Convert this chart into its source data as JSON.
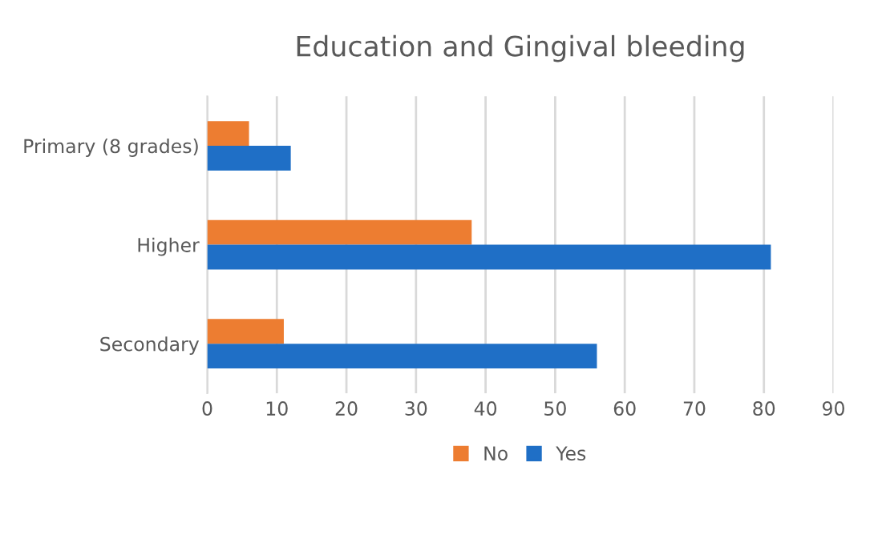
{
  "chart_data": {
    "type": "bar",
    "orientation": "horizontal",
    "title": "Education and Gingival bleeding",
    "categories": [
      "Primary (8 grades)",
      "Higher",
      "Secondary"
    ],
    "series": [
      {
        "name": "No",
        "color": "#ed7d31",
        "values": [
          6,
          38,
          11
        ]
      },
      {
        "name": "Yes",
        "color": "#1f6fc6",
        "values": [
          12,
          81,
          56
        ]
      }
    ],
    "xlim": [
      0,
      90
    ],
    "xticks": [
      0,
      10,
      20,
      30,
      40,
      50,
      60,
      70,
      80,
      90
    ],
    "grid": "x",
    "legend": "bottom"
  }
}
